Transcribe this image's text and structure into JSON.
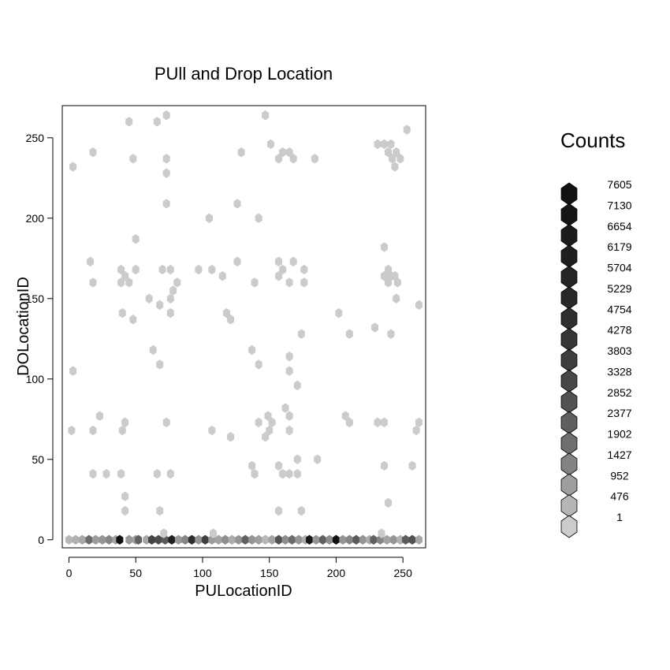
{
  "chart_data": {
    "type": "heatmap",
    "subtype": "hexbin",
    "title": "PUll and Drop Location",
    "xlabel": "PULocationID",
    "ylabel": "DOLocationID",
    "xlim": [
      -5,
      267
    ],
    "ylim": [
      -5,
      270
    ],
    "x_ticks": [
      0,
      50,
      100,
      150,
      200,
      250
    ],
    "y_ticks": [
      0,
      50,
      100,
      150,
      200,
      250
    ],
    "legend": {
      "title": "Counts",
      "placement": "right",
      "entries": [
        {
          "label": "7605",
          "color": "#111111"
        },
        {
          "label": "7130",
          "color": "#161616"
        },
        {
          "label": "6654",
          "color": "#1b1b1b"
        },
        {
          "label": "6179",
          "color": "#1f1f1f"
        },
        {
          "label": "5704",
          "color": "#242424"
        },
        {
          "label": "5229",
          "color": "#292929"
        },
        {
          "label": "4754",
          "color": "#2f2f2f"
        },
        {
          "label": "4278",
          "color": "#363636"
        },
        {
          "label": "3803",
          "color": "#3e3e3e"
        },
        {
          "label": "3328",
          "color": "#474747"
        },
        {
          "label": "2852",
          "color": "#525252"
        },
        {
          "label": "2377",
          "color": "#5f5f5f"
        },
        {
          "label": "1902",
          "color": "#6f6f6f"
        },
        {
          "label": "1427",
          "color": "#838383"
        },
        {
          "label": "952",
          "color": "#9e9e9e"
        },
        {
          "label": "476",
          "color": "#b6b6b6"
        },
        {
          "label": "1",
          "color": "#cccccc"
        }
      ]
    },
    "bins": [
      [
        0,
        0,
        200
      ],
      [
        5,
        0,
        300
      ],
      [
        10,
        0,
        500
      ],
      [
        15,
        0,
        2500
      ],
      [
        20,
        0,
        800
      ],
      [
        25,
        0,
        1000
      ],
      [
        30,
        0,
        1500
      ],
      [
        35,
        0,
        600
      ],
      [
        38,
        0,
        7605
      ],
      [
        45,
        0,
        900
      ],
      [
        50,
        0,
        700
      ],
      [
        52,
        0,
        3000
      ],
      [
        58,
        0,
        500
      ],
      [
        62,
        0,
        4500
      ],
      [
        67,
        0,
        4000
      ],
      [
        72,
        0,
        3300
      ],
      [
        77,
        0,
        6654
      ],
      [
        82,
        0,
        900
      ],
      [
        87,
        0,
        1500
      ],
      [
        92,
        0,
        5704
      ],
      [
        97,
        0,
        1000
      ],
      [
        102,
        0,
        4754
      ],
      [
        107,
        0,
        800
      ],
      [
        112,
        0,
        600
      ],
      [
        117,
        0,
        1200
      ],
      [
        122,
        0,
        400
      ],
      [
        127,
        0,
        1000
      ],
      [
        132,
        0,
        3000
      ],
      [
        137,
        0,
        1000
      ],
      [
        142,
        0,
        700
      ],
      [
        147,
        0,
        200
      ],
      [
        152,
        0,
        600
      ],
      [
        157,
        0,
        3800
      ],
      [
        162,
        0,
        1200
      ],
      [
        167,
        0,
        2500
      ],
      [
        172,
        0,
        1000
      ],
      [
        177,
        0,
        400
      ],
      [
        180,
        0,
        7130
      ],
      [
        185,
        0,
        1000
      ],
      [
        190,
        0,
        3000
      ],
      [
        195,
        0,
        1200
      ],
      [
        200,
        0,
        7605
      ],
      [
        205,
        0,
        1000
      ],
      [
        210,
        0,
        1500
      ],
      [
        215,
        0,
        3300
      ],
      [
        220,
        0,
        1000
      ],
      [
        225,
        0,
        400
      ],
      [
        228,
        0,
        3000
      ],
      [
        233,
        0,
        1500
      ],
      [
        238,
        0,
        600
      ],
      [
        243,
        0,
        1000
      ],
      [
        248,
        0,
        300
      ],
      [
        252,
        0,
        3300
      ],
      [
        257,
        0,
        3800
      ],
      [
        262,
        0,
        500
      ],
      [
        3,
        232,
        1
      ],
      [
        45,
        260,
        1
      ],
      [
        66,
        260,
        1
      ],
      [
        73,
        264,
        1
      ],
      [
        147,
        264,
        1
      ],
      [
        253,
        255,
        1
      ],
      [
        48,
        237,
        1
      ],
      [
        18,
        241,
        1
      ],
      [
        73,
        237,
        1
      ],
      [
        73,
        228,
        1
      ],
      [
        129,
        241,
        1
      ],
      [
        151,
        246,
        1
      ],
      [
        160,
        241,
        1
      ],
      [
        157,
        237,
        1
      ],
      [
        165,
        241,
        1
      ],
      [
        168,
        237,
        1
      ],
      [
        184,
        237,
        1
      ],
      [
        231,
        246,
        1
      ],
      [
        236,
        246,
        1
      ],
      [
        239,
        241,
        1
      ],
      [
        241,
        246,
        1
      ],
      [
        242,
        237,
        1
      ],
      [
        245,
        241,
        1
      ],
      [
        244,
        232,
        1
      ],
      [
        248,
        237,
        1
      ],
      [
        73,
        209,
        1
      ],
      [
        105,
        200,
        1
      ],
      [
        126,
        209,
        1
      ],
      [
        142,
        200,
        1
      ],
      [
        50,
        187,
        1
      ],
      [
        16,
        173,
        1
      ],
      [
        18,
        160,
        1
      ],
      [
        39,
        168,
        1
      ],
      [
        39,
        160,
        1
      ],
      [
        42,
        164,
        1
      ],
      [
        45,
        160,
        1
      ],
      [
        50,
        168,
        1
      ],
      [
        40,
        141,
        1
      ],
      [
        48,
        137,
        1
      ],
      [
        60,
        150,
        1
      ],
      [
        68,
        146,
        1
      ],
      [
        70,
        168,
        1
      ],
      [
        76,
        168,
        1
      ],
      [
        76,
        150,
        1
      ],
      [
        78,
        155,
        1
      ],
      [
        81,
        160,
        1
      ],
      [
        76,
        141,
        1
      ],
      [
        97,
        168,
        1
      ],
      [
        107,
        168,
        1
      ],
      [
        115,
        164,
        1
      ],
      [
        118,
        141,
        1
      ],
      [
        121,
        137,
        1
      ],
      [
        126,
        173,
        1
      ],
      [
        139,
        160,
        1
      ],
      [
        157,
        173,
        1
      ],
      [
        157,
        164,
        1
      ],
      [
        160,
        168,
        1
      ],
      [
        165,
        160,
        1
      ],
      [
        168,
        173,
        1
      ],
      [
        176,
        168,
        1
      ],
      [
        176,
        160,
        1
      ],
      [
        236,
        182,
        1
      ],
      [
        236,
        164,
        1
      ],
      [
        239,
        168,
        1
      ],
      [
        241,
        164,
        1
      ],
      [
        239,
        160,
        1
      ],
      [
        244,
        164,
        1
      ],
      [
        246,
        160,
        1
      ],
      [
        245,
        150,
        1
      ],
      [
        3,
        105,
        1
      ],
      [
        63,
        118,
        1
      ],
      [
        68,
        109,
        1
      ],
      [
        137,
        118,
        1
      ],
      [
        142,
        109,
        1
      ],
      [
        165,
        114,
        1
      ],
      [
        165,
        105,
        1
      ],
      [
        171,
        96,
        1
      ],
      [
        174,
        128,
        1
      ],
      [
        202,
        141,
        1
      ],
      [
        210,
        128,
        1
      ],
      [
        229,
        132,
        1
      ],
      [
        241,
        128,
        1
      ],
      [
        262,
        146,
        1
      ],
      [
        2,
        68,
        1
      ],
      [
        18,
        68,
        1
      ],
      [
        23,
        77,
        1
      ],
      [
        40,
        68,
        1
      ],
      [
        42,
        73,
        1
      ],
      [
        73,
        73,
        1
      ],
      [
        107,
        68,
        1
      ],
      [
        121,
        64,
        1
      ],
      [
        142,
        73,
        1
      ],
      [
        147,
        64,
        1
      ],
      [
        149,
        77,
        1
      ],
      [
        152,
        73,
        1
      ],
      [
        150,
        68,
        1
      ],
      [
        162,
        82,
        1
      ],
      [
        165,
        77,
        1
      ],
      [
        165,
        68,
        1
      ],
      [
        207,
        77,
        1
      ],
      [
        210,
        73,
        1
      ],
      [
        231,
        73,
        1
      ],
      [
        236,
        73,
        1
      ],
      [
        260,
        68,
        1
      ],
      [
        262,
        73,
        1
      ],
      [
        18,
        41,
        1
      ],
      [
        28,
        41,
        1
      ],
      [
        39,
        41,
        1
      ],
      [
        42,
        27,
        1
      ],
      [
        42,
        18,
        1
      ],
      [
        66,
        41,
        1
      ],
      [
        68,
        18,
        1
      ],
      [
        71,
        4,
        1
      ],
      [
        76,
        41,
        1
      ],
      [
        108,
        4,
        1
      ],
      [
        137,
        46,
        1
      ],
      [
        139,
        41,
        1
      ],
      [
        157,
        18,
        1
      ],
      [
        157,
        46,
        1
      ],
      [
        160,
        41,
        1
      ],
      [
        165,
        41,
        1
      ],
      [
        171,
        41,
        1
      ],
      [
        171,
        50,
        1
      ],
      [
        174,
        18,
        1
      ],
      [
        186,
        50,
        1
      ],
      [
        234,
        4,
        1
      ],
      [
        236,
        46,
        1
      ],
      [
        239,
        23,
        1
      ],
      [
        257,
        46,
        1
      ]
    ]
  }
}
